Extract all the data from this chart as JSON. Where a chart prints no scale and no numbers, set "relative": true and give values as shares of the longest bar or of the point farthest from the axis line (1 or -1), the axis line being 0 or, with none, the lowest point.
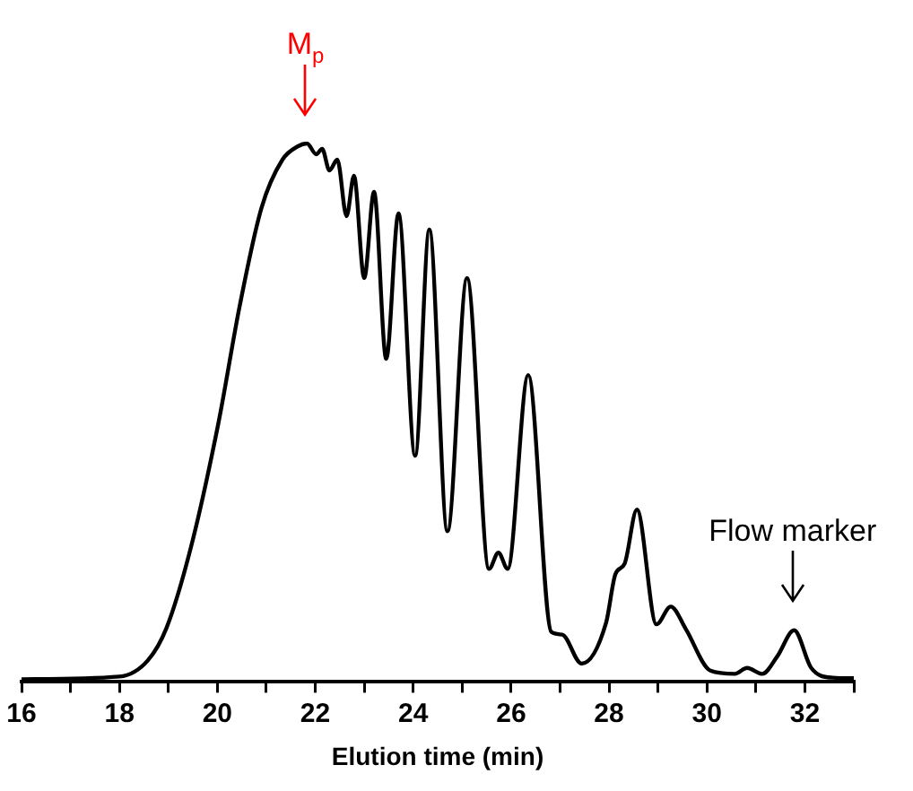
{
  "chart_data": {
    "type": "line",
    "relative": true,
    "xlabel": "Elution time (min)",
    "xlim": [
      16,
      33
    ],
    "xticks": [
      16,
      {
        "value": 17,
        "label": null
      },
      18,
      {
        "value": 19,
        "label": null
      },
      20,
      {
        "value": 21,
        "label": null
      },
      22,
      {
        "value": 23,
        "label": null
      },
      24,
      {
        "value": 25,
        "label": null
      },
      26,
      {
        "value": 27,
        "label": null
      },
      28,
      {
        "value": 29,
        "label": null
      },
      30,
      {
        "value": 31,
        "label": null
      },
      32,
      {
        "value": 33,
        "label": null
      }
    ],
    "grid": false,
    "legend": false,
    "marker": "none",
    "line_style": "solid",
    "annotations": [
      {
        "text": "M$_{p}$",
        "x": 21.8,
        "y": 1.0
      },
      {
        "text": "Flow marker",
        "x": 31.75,
        "y": 0.096
      }
    ],
    "series": [
      {
        "color": "#000000",
        "x": [
          16,
          18,
          18.58,
          18.96,
          19.46,
          20.02,
          20.46,
          20.9,
          21.33,
          21.65,
          21.83,
          22.02,
          22.14,
          22.29,
          22.45,
          22.64,
          22.79,
          23.0,
          23.2,
          23.45,
          23.7,
          24.04,
          24.33,
          24.7,
          25.1,
          25.55,
          25.74,
          25.93,
          26.35,
          26.82,
          27.04,
          27.44,
          27.94,
          28.13,
          28.32,
          28.57,
          28.97,
          29.26,
          29.57,
          30.07,
          30.57,
          30.82,
          31.13,
          31.44,
          31.78,
          32.13,
          32.57,
          33.0
        ],
        "values": [
          0.005,
          0.01,
          0.04,
          0.1,
          0.25,
          0.48,
          0.7,
          0.88,
          0.97,
          0.995,
          1.0,
          0.98,
          0.99,
          0.95,
          0.97,
          0.865,
          0.94,
          0.75,
          0.91,
          0.6,
          0.87,
          0.42,
          0.84,
          0.28,
          0.75,
          0.21,
          0.24,
          0.21,
          0.57,
          0.093,
          0.088,
          0.034,
          0.11,
          0.2,
          0.22,
          0.32,
          0.107,
          0.14,
          0.098,
          0.021,
          0.015,
          0.026,
          0.015,
          0.048,
          0.096,
          0.026,
          0.008,
          0.007
        ]
      }
    ]
  }
}
